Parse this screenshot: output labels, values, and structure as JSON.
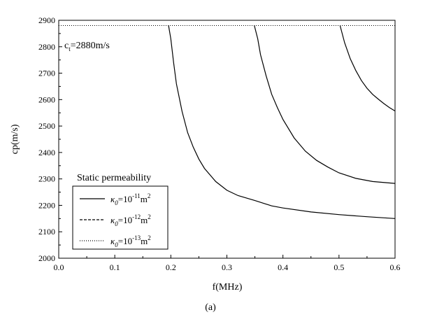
{
  "chart_data": {
    "type": "line",
    "title": "",
    "xlabel": "f(MHz)",
    "ylabel": "cp(m/s)",
    "caption": "(a)",
    "xlim": [
      0.0,
      0.6
    ],
    "ylim": [
      2000,
      2900
    ],
    "xticks": [
      "0.0",
      "0.1",
      "0.2",
      "0.3",
      "0.4",
      "0.5",
      "0.6"
    ],
    "yticks": [
      "2000",
      "2100",
      "2200",
      "2300",
      "2400",
      "2500",
      "2600",
      "2700",
      "2800",
      "2900"
    ],
    "reference_line": {
      "y": 2880,
      "style": "dotted"
    },
    "annotation": {
      "prefix": "c",
      "subscript": "t",
      "suffix": "=2880m/s"
    },
    "legend": {
      "title": "Static permeability",
      "placement": "bottom-left",
      "entries": [
        {
          "symbol": "κ",
          "subscript": "0",
          "base": "=10",
          "exponent": "-11",
          "unit": "m",
          "unit_exp": "2",
          "style": "solid"
        },
        {
          "symbol": "κ",
          "subscript": "0",
          "base": "=10",
          "exponent": "-12",
          "unit": "m",
          "unit_exp": "2",
          "style": "dashed"
        },
        {
          "symbol": "κ",
          "subscript": "0",
          "base": "=10",
          "exponent": "-13",
          "unit": "m",
          "unit_exp": "2",
          "style": "dotted"
        }
      ]
    },
    "series": [
      {
        "style": "solid",
        "x": [
          0.196,
          0.2,
          0.205,
          0.21,
          0.22,
          0.23,
          0.24,
          0.25,
          0.26,
          0.28,
          0.3,
          0.32,
          0.35,
          0.38,
          0.4,
          0.45,
          0.5,
          0.55,
          0.6
        ],
        "y": [
          2880,
          2830,
          2740,
          2660,
          2555,
          2475,
          2420,
          2375,
          2340,
          2290,
          2257,
          2237,
          2218,
          2198,
          2190,
          2175,
          2165,
          2157,
          2150
        ]
      },
      {
        "style": "solid",
        "x": [
          0.349,
          0.355,
          0.36,
          0.37,
          0.38,
          0.39,
          0.4,
          0.42,
          0.44,
          0.46,
          0.48,
          0.5,
          0.53,
          0.56,
          0.6
        ],
        "y": [
          2880,
          2830,
          2770,
          2690,
          2620,
          2570,
          2525,
          2455,
          2405,
          2370,
          2345,
          2323,
          2302,
          2290,
          2283
        ]
      },
      {
        "style": "solid",
        "x": [
          0.502,
          0.51,
          0.52,
          0.53,
          0.54,
          0.55,
          0.56,
          0.57,
          0.58,
          0.59,
          0.6
        ],
        "y": [
          2880,
          2815,
          2755,
          2710,
          2672,
          2643,
          2620,
          2602,
          2585,
          2570,
          2557
        ]
      }
    ]
  }
}
